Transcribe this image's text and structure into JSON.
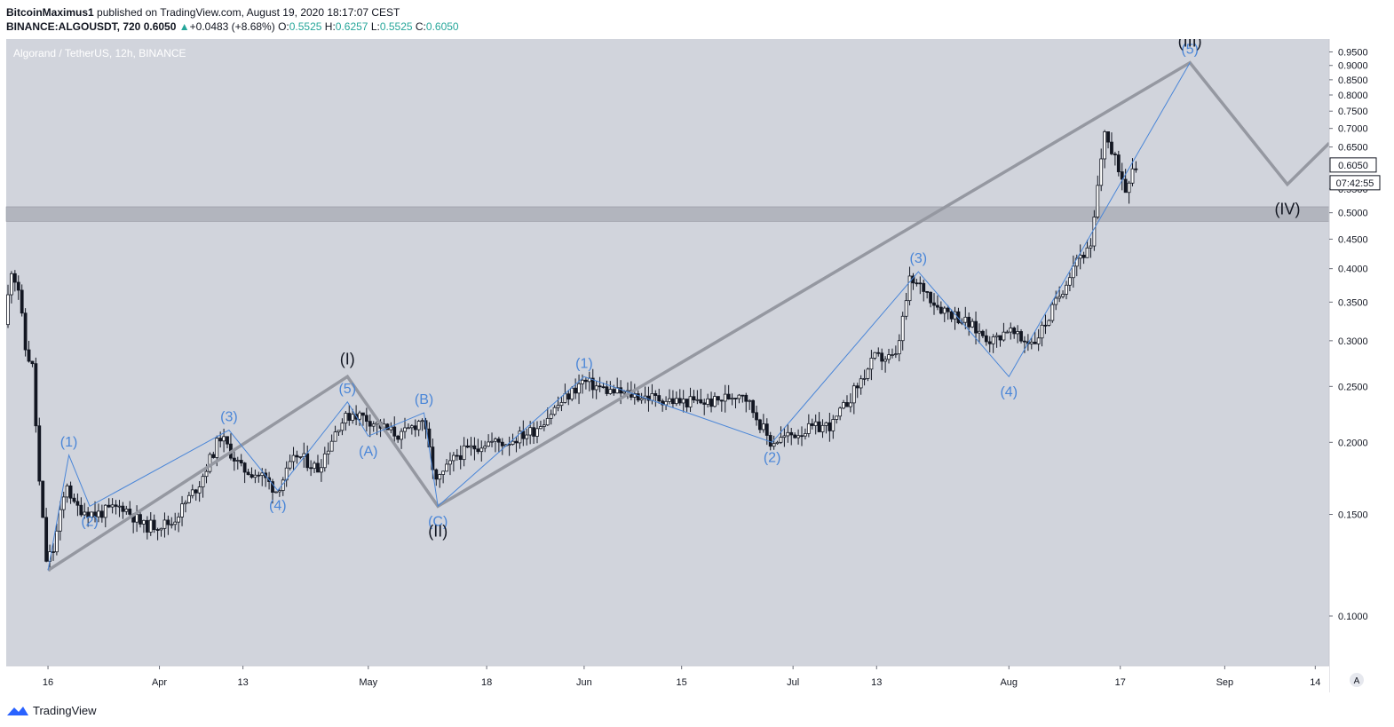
{
  "header": {
    "author": "BitcoinMaximus1",
    "published_text": "published on TradingView.com, August 19, 2020 18:17:07 CEST",
    "symbol": "BINANCE:ALGOUSDT, 720",
    "last": "0.6050",
    "change": "+0.0483 (+8.68%)",
    "o_label": "O:",
    "o_value": "0.5525",
    "h_label": "H:",
    "h_value": "0.6257",
    "l_label": "L:",
    "l_value": "0.5525",
    "c_label": "C:",
    "c_value": "0.6050"
  },
  "chart_title": "Algorand / TetherUS, 12h, BINANCE",
  "price_badge": "0.6050",
  "countdown_badge": "07:42:55",
  "auto_scale_label": "A",
  "footer": {
    "brand": "TradingView"
  },
  "colors": {
    "background": "#d1d4dc",
    "support_zone": "#b2b5be",
    "wave_blue": "#4a86d8",
    "projection_grey": "#9598a1",
    "candle": "#131722",
    "up_text": "#26a69a"
  },
  "chart_data": {
    "type": "candlestick",
    "title": "Algorand / TetherUS, 12h, BINANCE",
    "x_axis": {
      "type": "date",
      "range": [
        "2020-03-10",
        "2020-09-16"
      ],
      "ticks": [
        {
          "date": "2020-03-16",
          "label": "16"
        },
        {
          "date": "2020-04-01",
          "label": "Apr"
        },
        {
          "date": "2020-04-13",
          "label": "13"
        },
        {
          "date": "2020-05-01",
          "label": "May"
        },
        {
          "date": "2020-05-18",
          "label": "18"
        },
        {
          "date": "2020-06-01",
          "label": "Jun"
        },
        {
          "date": "2020-06-15",
          "label": "15"
        },
        {
          "date": "2020-07-01",
          "label": "Jul"
        },
        {
          "date": "2020-07-13",
          "label": "13"
        },
        {
          "date": "2020-08-01",
          "label": "Aug"
        },
        {
          "date": "2020-08-17",
          "label": "17"
        },
        {
          "date": "2020-09-01",
          "label": "Sep"
        },
        {
          "date": "2020-09-14",
          "label": "14"
        }
      ]
    },
    "y_axis": {
      "scale": "log",
      "range": [
        0.082,
        1.0
      ],
      "ticks": [
        "0.1000",
        "0.1500",
        "0.2000",
        "0.2500",
        "0.3000",
        "0.3500",
        "0.4000",
        "0.4500",
        "0.5000",
        "0.5500",
        "0.6500",
        "0.7000",
        "0.7500",
        "0.8000",
        "0.8500",
        "0.9000",
        "0.9500"
      ]
    },
    "last_price": 0.605,
    "price_path": [
      [
        "2020-03-10",
        0.32
      ],
      [
        "2020-03-11",
        0.4
      ],
      [
        "2020-03-12",
        0.37
      ],
      [
        "2020-03-13",
        0.29
      ],
      [
        "2020-03-14",
        0.27
      ],
      [
        "2020-03-15",
        0.17
      ],
      [
        "2020-03-16",
        0.125
      ],
      [
        "2020-03-17",
        0.13
      ],
      [
        "2020-03-18",
        0.15
      ],
      [
        "2020-03-19",
        0.17
      ],
      [
        "2020-03-20",
        0.155
      ],
      [
        "2020-03-23",
        0.15
      ],
      [
        "2020-03-27",
        0.155
      ],
      [
        "2020-03-30",
        0.143
      ],
      [
        "2020-04-03",
        0.145
      ],
      [
        "2020-04-07",
        0.17
      ],
      [
        "2020-04-10",
        0.205
      ],
      [
        "2020-04-13",
        0.18
      ],
      [
        "2020-04-16",
        0.175
      ],
      [
        "2020-04-18",
        0.165
      ],
      [
        "2020-04-21",
        0.19
      ],
      [
        "2020-04-24",
        0.18
      ],
      [
        "2020-04-27",
        0.215
      ],
      [
        "2020-04-29",
        0.225
      ],
      [
        "2020-05-01",
        0.22
      ],
      [
        "2020-05-04",
        0.21
      ],
      [
        "2020-05-06",
        0.205
      ],
      [
        "2020-05-09",
        0.22
      ],
      [
        "2020-05-11",
        0.17
      ],
      [
        "2020-05-14",
        0.19
      ],
      [
        "2020-05-18",
        0.2
      ],
      [
        "2020-05-21",
        0.2
      ],
      [
        "2020-05-25",
        0.21
      ],
      [
        "2020-05-29",
        0.235
      ],
      [
        "2020-06-01",
        0.255
      ],
      [
        "2020-06-05",
        0.245
      ],
      [
        "2020-06-10",
        0.24
      ],
      [
        "2020-06-15",
        0.235
      ],
      [
        "2020-06-20",
        0.235
      ],
      [
        "2020-06-24",
        0.245
      ],
      [
        "2020-06-28",
        0.2
      ],
      [
        "2020-07-03",
        0.21
      ],
      [
        "2020-07-07",
        0.215
      ],
      [
        "2020-07-10",
        0.245
      ],
      [
        "2020-07-13",
        0.28
      ],
      [
        "2020-07-16",
        0.28
      ],
      [
        "2020-07-18",
        0.38
      ],
      [
        "2020-07-20",
        0.37
      ],
      [
        "2020-07-22",
        0.345
      ],
      [
        "2020-07-25",
        0.33
      ],
      [
        "2020-07-28",
        0.31
      ],
      [
        "2020-07-30",
        0.3
      ],
      [
        "2020-08-01",
        0.315
      ],
      [
        "2020-08-03",
        0.3
      ],
      [
        "2020-08-05",
        0.3
      ],
      [
        "2020-08-07",
        0.33
      ],
      [
        "2020-08-09",
        0.37
      ],
      [
        "2020-08-11",
        0.42
      ],
      [
        "2020-08-13",
        0.43
      ],
      [
        "2020-08-14",
        0.55
      ],
      [
        "2020-08-15",
        0.7
      ],
      [
        "2020-08-16",
        0.63
      ],
      [
        "2020-08-17",
        0.6
      ],
      [
        "2020-08-18",
        0.55
      ],
      [
        "2020-08-19",
        0.605
      ]
    ],
    "support_zone": [
      0.483,
      0.512
    ],
    "wave_count_blue": [
      {
        "date": "2020-03-16",
        "price": 0.12,
        "label": ""
      },
      {
        "date": "2020-03-19",
        "price": 0.19,
        "label": "(1)"
      },
      {
        "date": "2020-03-22",
        "price": 0.155,
        "label": "(2)"
      },
      {
        "date": "2020-04-11",
        "price": 0.21,
        "label": "(3)"
      },
      {
        "date": "2020-04-18",
        "price": 0.165,
        "label": "(4)"
      },
      {
        "date": "2020-04-28",
        "price": 0.235,
        "label": "(5)"
      },
      {
        "date": "2020-05-01",
        "price": 0.205,
        "label": "(A)"
      },
      {
        "date": "2020-05-09",
        "price": 0.225,
        "label": "(B)"
      },
      {
        "date": "2020-05-11",
        "price": 0.155,
        "label": "(C)"
      },
      {
        "date": "2020-06-01",
        "price": 0.26,
        "label": "(1)"
      },
      {
        "date": "2020-06-28",
        "price": 0.2,
        "label": "(2)"
      },
      {
        "date": "2020-07-19",
        "price": 0.395,
        "label": "(3)"
      },
      {
        "date": "2020-08-01",
        "price": 0.26,
        "label": "(4)"
      },
      {
        "date": "2020-08-27",
        "price": 0.91,
        "label": "(5)"
      }
    ],
    "wave_count_grey": [
      {
        "date": "2020-03-16",
        "price": 0.12,
        "label": ""
      },
      {
        "date": "2020-04-28",
        "price": 0.26,
        "label": "(I)"
      },
      {
        "date": "2020-05-11",
        "price": 0.155,
        "label": "(II)"
      },
      {
        "date": "2020-08-27",
        "price": 0.91,
        "label": "(III)"
      },
      {
        "date": "2020-09-10",
        "price": 0.56,
        "label": "(IV)"
      },
      {
        "date": "2020-09-16",
        "price": 0.66,
        "label": ""
      }
    ]
  }
}
